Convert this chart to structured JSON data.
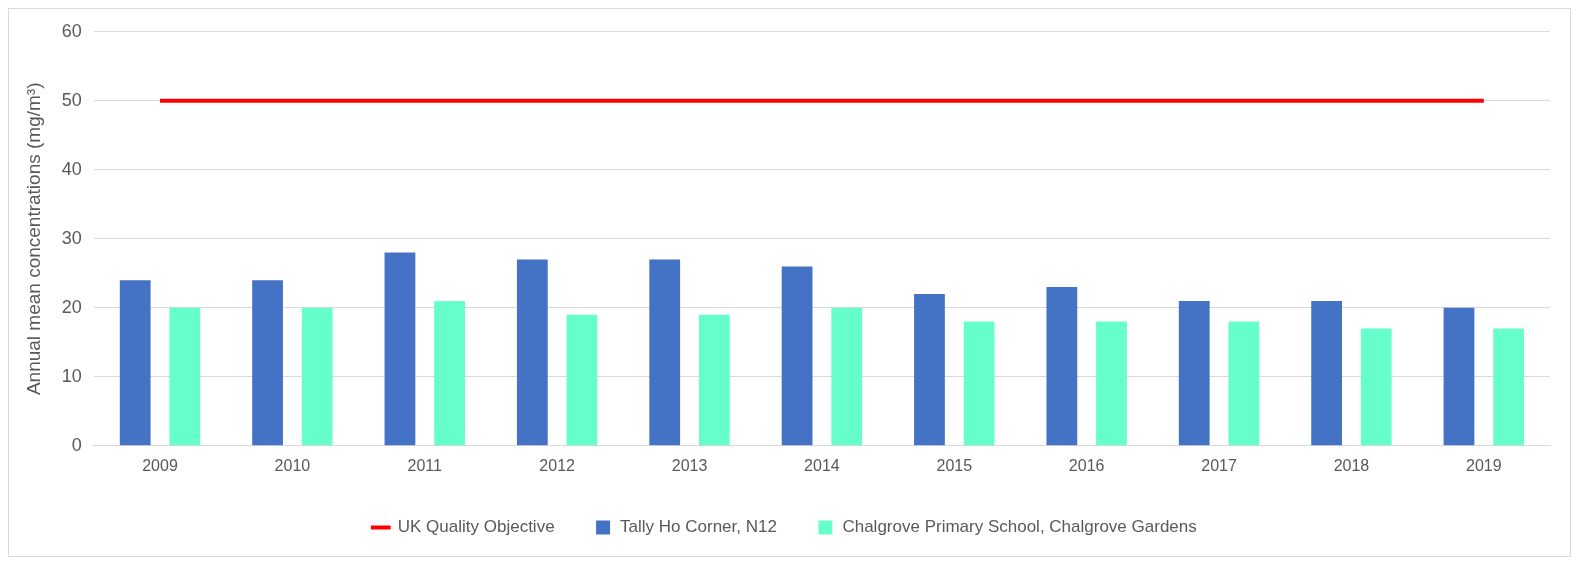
{
  "chart_data": {
    "type": "bar",
    "ylabel": "Annual mean concentrations (mg/m³)",
    "categories": [
      "2009",
      "2010",
      "2011",
      "2012",
      "2013",
      "2014",
      "2015",
      "2016",
      "2017",
      "2018",
      "2019"
    ],
    "series": [
      {
        "name": "Tally Ho Corner, N12",
        "color": "#4472c4",
        "values": [
          24,
          24,
          28,
          27,
          27,
          26,
          22,
          23,
          21,
          21,
          20
        ]
      },
      {
        "name": "Chalgrove Primary School, Chalgrove Gardens",
        "color": "#66ffcc",
        "values": [
          20,
          20,
          21,
          19,
          19,
          20,
          18,
          18,
          18,
          17,
          17
        ]
      },
      {
        "name": "UK Quality Objective",
        "type": "line",
        "color": "#ff0000",
        "values": [
          50,
          50,
          50,
          50,
          50,
          50,
          50,
          50,
          50,
          50,
          50
        ]
      }
    ],
    "ylim": [
      0,
      60
    ],
    "yticks": [
      0,
      10,
      20,
      30,
      40,
      50,
      60
    ],
    "grid": "y",
    "legend": "bottom",
    "marker": "none"
  }
}
